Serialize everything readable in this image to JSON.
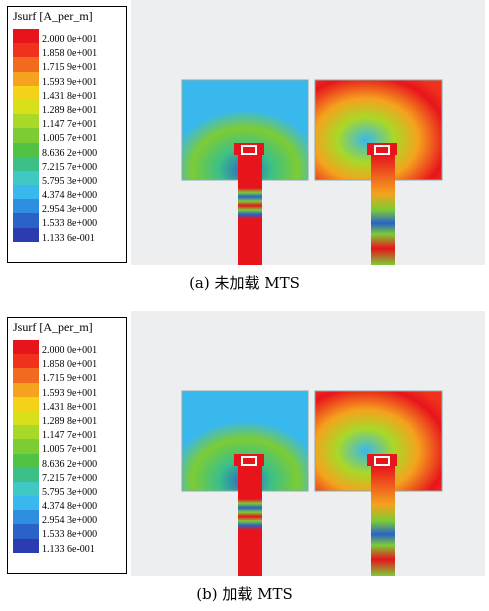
{
  "panels": [
    {
      "id": "a",
      "legend_title": "Jsurf [A_per_m]",
      "caption": "(a) 未加载 MTS",
      "legend_values": [
        "2.000 0e+001",
        "1.858 0e+001",
        "1.715 9e+001",
        "1.593 9e+001",
        "1.431 8e+001",
        "1.289 8e+001",
        "1.147 7e+001",
        "1.005 7e+001",
        "8.636 2e+000",
        "7.215 7e+000",
        "5.795 3e+000",
        "4.374 8e+000",
        "2.954 3e+000",
        "1.533 8e+000",
        "1.133 6e-001"
      ]
    },
    {
      "id": "b",
      "legend_title": "Jsurf [A_per_m]",
      "caption": "(b) 加载 MTS",
      "legend_values": [
        "2.000 0e+001",
        "1.858 0e+001",
        "1.715 9e+001",
        "1.593 9e+001",
        "1.431 8e+001",
        "1.289 8e+001",
        "1.147 7e+001",
        "1.005 7e+001",
        "8.636 2e+000",
        "7.215 7e+000",
        "5.795 3e+000",
        "4.374 8e+000",
        "2.954 3e+000",
        "1.533 8e+000",
        "1.133 6e-001"
      ]
    }
  ],
  "colorscale": [
    "#e8141c",
    "#f0321c",
    "#f26a1e",
    "#f5a21e",
    "#f4d21a",
    "#d8e01c",
    "#a8d828",
    "#7ccc34",
    "#52c244",
    "#3cc088",
    "#40c8c4",
    "#38b8ec",
    "#2e8ee0",
    "#2a62c8",
    "#2a3cb0"
  ]
}
